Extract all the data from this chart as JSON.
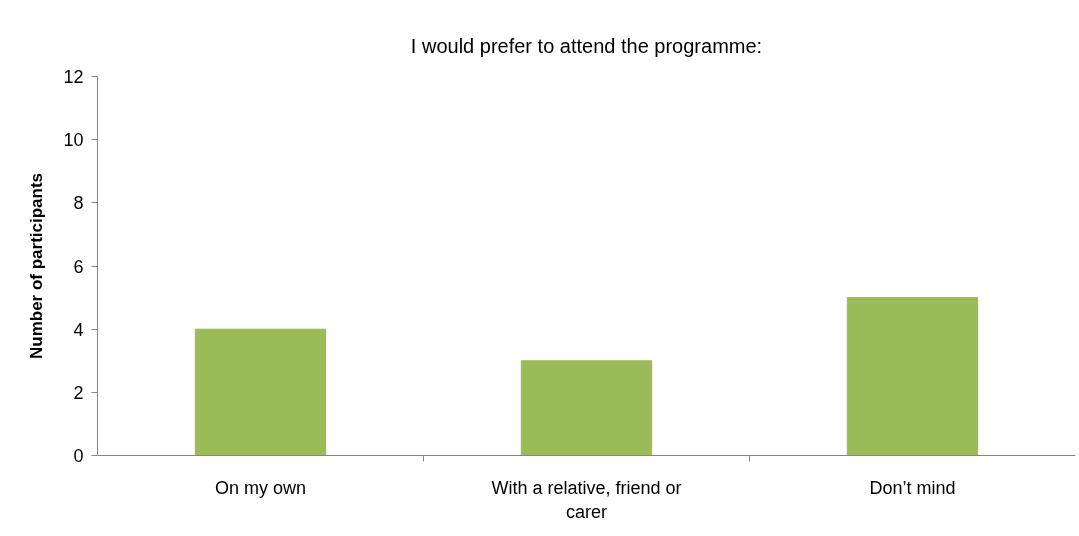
{
  "chart_data": {
    "type": "bar",
    "title": "I would prefer to attend the programme:",
    "ylabel": "Number of participants",
    "categories": [
      "On my own",
      "With a relative, friend or carer",
      "Don’t mind"
    ],
    "values": [
      4,
      3,
      5
    ],
    "color": "#9bbb59",
    "ylim": [
      0,
      12
    ],
    "yticks": [
      0,
      2,
      4,
      6,
      8,
      10,
      12
    ]
  }
}
